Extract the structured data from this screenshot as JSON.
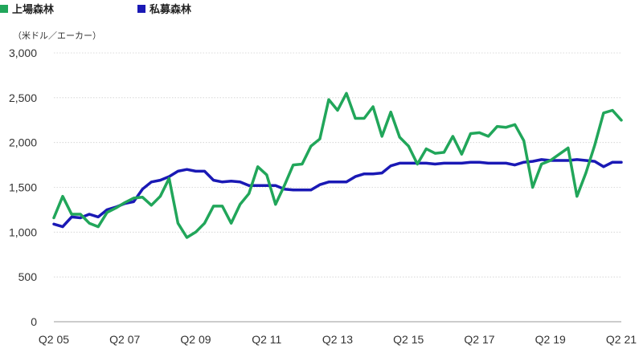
{
  "legend": [
    {
      "label": "上場森林",
      "color": "#21a65a"
    },
    {
      "label": "私募森林",
      "color": "#1a19b5"
    }
  ],
  "unit_label": "（米ドル／エーカー）",
  "chart_data": {
    "type": "line",
    "title": "",
    "xlabel": "",
    "ylabel": "（米ドル／エーカー）",
    "ylim": [
      0,
      3000
    ],
    "y_ticks": [
      0,
      500,
      1000,
      1500,
      2000,
      2500,
      3000
    ],
    "y_tick_labels": [
      "0",
      "500",
      "1,000",
      "1,500",
      "2,000",
      "2,500",
      "3,000"
    ],
    "x_tick_labels": [
      "Q2 05",
      "Q2 07",
      "Q2 09",
      "Q2 11",
      "Q2 13",
      "Q2 15",
      "Q2 17",
      "Q2 19",
      "Q2 21"
    ],
    "grid": true,
    "legend_position": "top-left",
    "x": [
      "Q2 05",
      "Q3 05",
      "Q4 05",
      "Q1 06",
      "Q2 06",
      "Q3 06",
      "Q4 06",
      "Q1 07",
      "Q2 07",
      "Q3 07",
      "Q4 07",
      "Q1 08",
      "Q2 08",
      "Q3 08",
      "Q4 08",
      "Q1 09",
      "Q2 09",
      "Q3 09",
      "Q4 09",
      "Q1 10",
      "Q2 10",
      "Q3 10",
      "Q4 10",
      "Q1 11",
      "Q2 11",
      "Q3 11",
      "Q4 11",
      "Q1 12",
      "Q2 12",
      "Q3 12",
      "Q4 12",
      "Q1 13",
      "Q2 13",
      "Q3 13",
      "Q4 13",
      "Q1 14",
      "Q2 14",
      "Q3 14",
      "Q4 14",
      "Q1 15",
      "Q2 15",
      "Q3 15",
      "Q4 15",
      "Q1 16",
      "Q2 16",
      "Q3 16",
      "Q4 16",
      "Q1 17",
      "Q2 17",
      "Q3 17",
      "Q4 17",
      "Q1 18",
      "Q2 18",
      "Q3 18",
      "Q4 18",
      "Q1 19",
      "Q2 19",
      "Q3 19",
      "Q4 19",
      "Q1 20",
      "Q2 20",
      "Q3 20",
      "Q4 20",
      "Q1 21",
      "Q2 21"
    ],
    "series": [
      {
        "name": "上場森林",
        "color": "#21a65a",
        "values": [
          1160,
          1400,
          1200,
          1200,
          1100,
          1060,
          1220,
          1270,
          1330,
          1380,
          1390,
          1300,
          1400,
          1600,
          1100,
          940,
          1000,
          1100,
          1290,
          1290,
          1100,
          1310,
          1430,
          1730,
          1640,
          1310,
          1520,
          1750,
          1760,
          1960,
          2040,
          2480,
          2360,
          2550,
          2270,
          2270,
          2400,
          2070,
          2340,
          2060,
          1960,
          1760,
          1930,
          1880,
          1890,
          2070,
          1870,
          2100,
          2110,
          2070,
          2180,
          2170,
          2200,
          2020,
          1500,
          1760,
          1800,
          1870,
          1940,
          1400,
          1660,
          1970,
          2330,
          2360,
          2250
        ]
      },
      {
        "name": "私募森林",
        "color": "#1a19b5",
        "values": [
          1090,
          1060,
          1170,
          1160,
          1200,
          1170,
          1250,
          1280,
          1320,
          1340,
          1480,
          1560,
          1580,
          1620,
          1680,
          1700,
          1680,
          1680,
          1580,
          1560,
          1570,
          1560,
          1520,
          1520,
          1520,
          1520,
          1480,
          1470,
          1470,
          1470,
          1530,
          1560,
          1560,
          1560,
          1620,
          1650,
          1650,
          1660,
          1740,
          1770,
          1770,
          1770,
          1770,
          1760,
          1770,
          1770,
          1770,
          1780,
          1780,
          1770,
          1770,
          1770,
          1750,
          1780,
          1790,
          1810,
          1800,
          1800,
          1800,
          1810,
          1800,
          1790,
          1730,
          1780,
          1780
        ]
      }
    ]
  }
}
